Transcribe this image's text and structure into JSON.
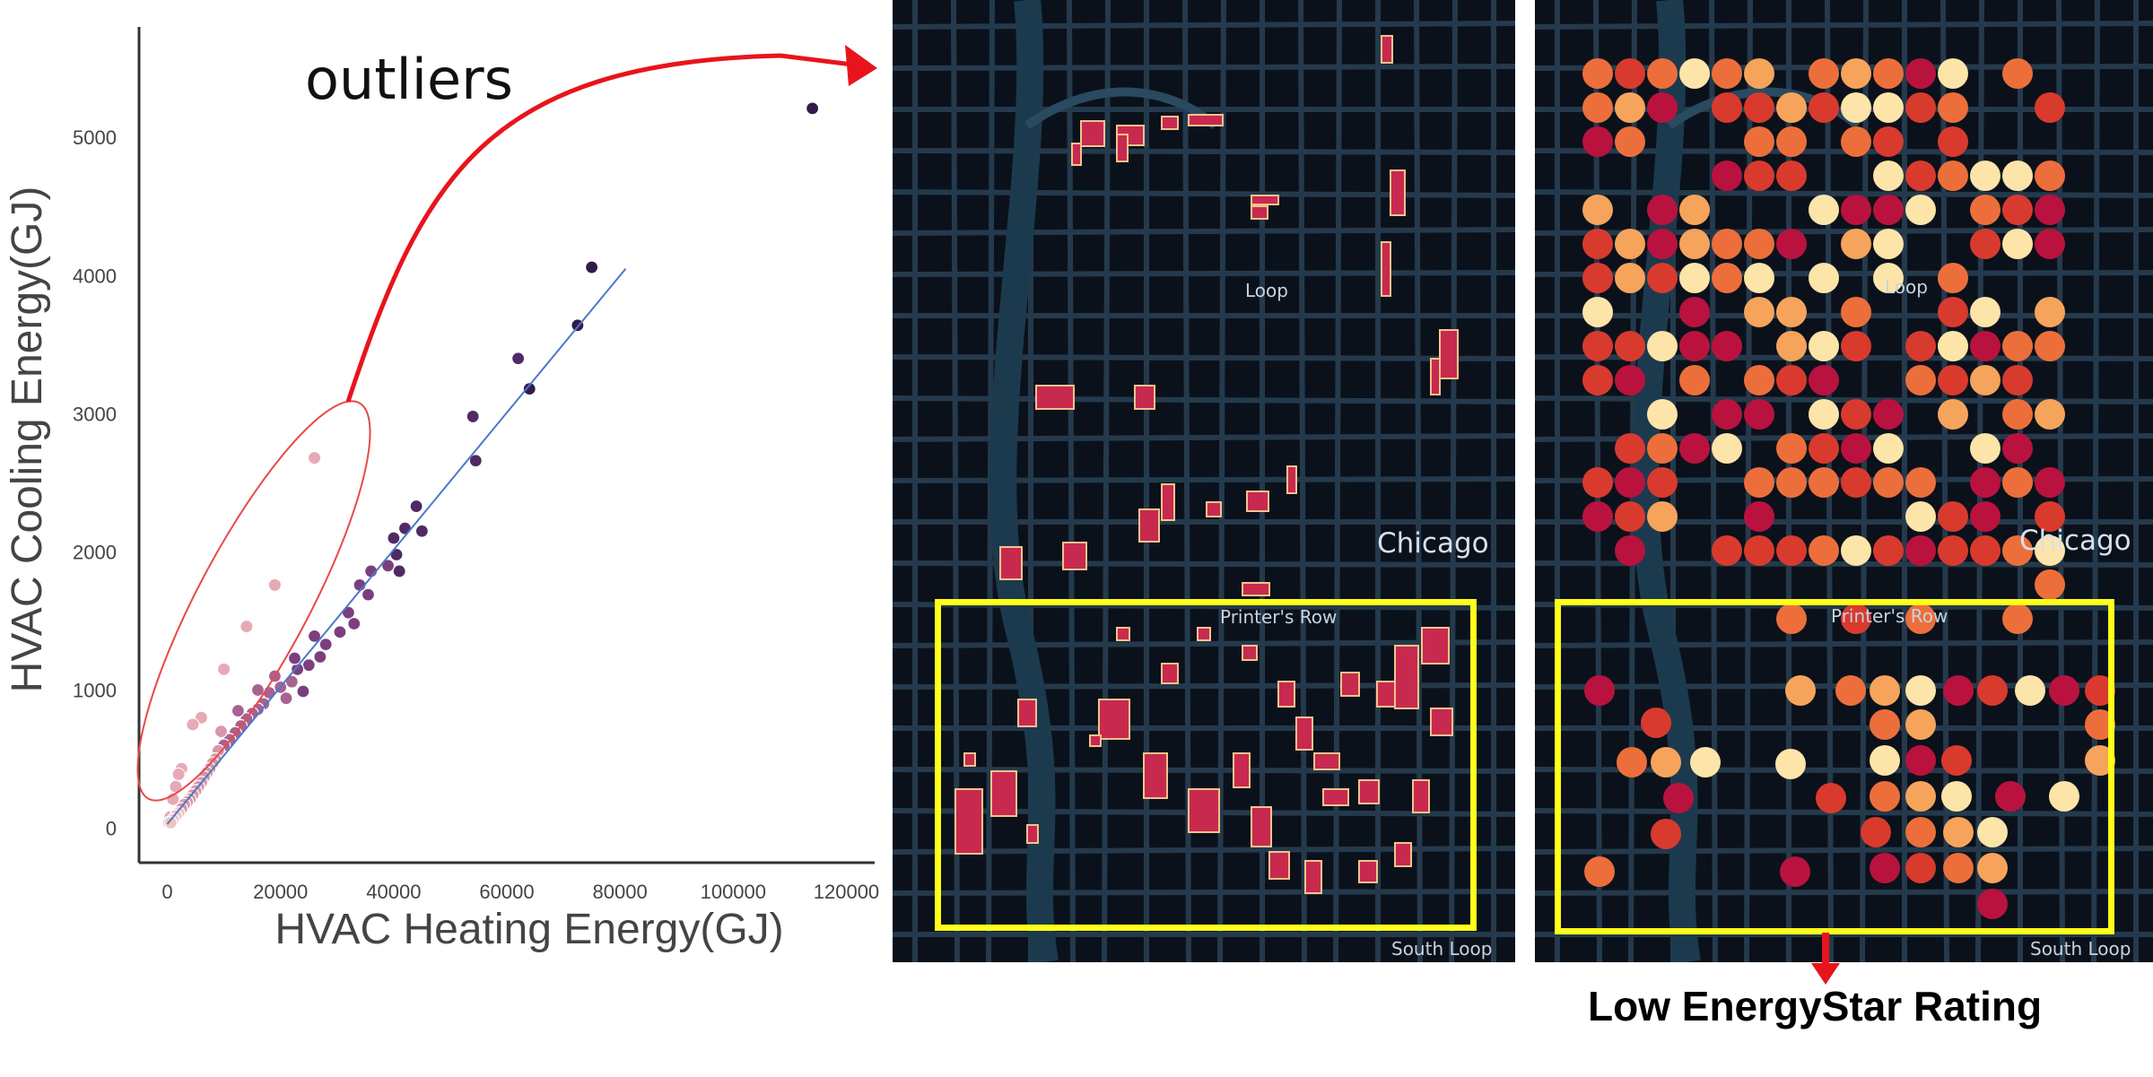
{
  "chart_data": {
    "type": "scatter",
    "xlabel": "HVAC Heating Energy(GJ)",
    "ylabel": "HVAC Cooling Energy(GJ)",
    "xlim": [
      -5000,
      125000
    ],
    "ylim": [
      -250,
      5800
    ],
    "xticks": [
      0,
      20000,
      40000,
      60000,
      80000,
      100000,
      120000
    ],
    "yticks": [
      0,
      1000,
      2000,
      3000,
      4000,
      5000
    ],
    "grid": false,
    "annotation": "outliers",
    "trendline": {
      "from": [
        0,
        30
      ],
      "to": [
        81000,
        4050
      ]
    },
    "outlier_points": [
      [
        26000,
        2680
      ],
      [
        19000,
        1760
      ],
      [
        14000,
        1460
      ],
      [
        10000,
        1150
      ],
      [
        6000,
        800
      ],
      [
        4500,
        750
      ],
      [
        2500,
        430
      ],
      [
        2000,
        390
      ],
      [
        1500,
        300
      ],
      [
        1000,
        210
      ],
      [
        500,
        80
      ],
      [
        300,
        40
      ]
    ],
    "main_points": [
      [
        114000,
        5210
      ],
      [
        75000,
        4060
      ],
      [
        72500,
        3640
      ],
      [
        62000,
        3400
      ],
      [
        64000,
        3180
      ],
      [
        54000,
        2980
      ],
      [
        54500,
        2660
      ],
      [
        44000,
        2330
      ],
      [
        42000,
        2170
      ],
      [
        45000,
        2150
      ],
      [
        40000,
        2100
      ],
      [
        40500,
        1980
      ],
      [
        39000,
        1900
      ],
      [
        41000,
        1860
      ],
      [
        36000,
        1860
      ],
      [
        34000,
        1760
      ],
      [
        35500,
        1690
      ],
      [
        32000,
        1560
      ],
      [
        33000,
        1480
      ],
      [
        30500,
        1420
      ],
      [
        28000,
        1330
      ],
      [
        26000,
        1390
      ],
      [
        27000,
        1240
      ],
      [
        25000,
        1180
      ],
      [
        23000,
        1150
      ],
      [
        22000,
        1060
      ],
      [
        20000,
        1020
      ],
      [
        21000,
        940
      ],
      [
        24000,
        990
      ],
      [
        18000,
        980
      ],
      [
        17000,
        900
      ],
      [
        16000,
        860
      ],
      [
        15000,
        830
      ],
      [
        14000,
        790
      ],
      [
        13000,
        740
      ],
      [
        12000,
        690
      ],
      [
        11000,
        640
      ],
      [
        10000,
        600
      ],
      [
        9000,
        560
      ],
      [
        8500,
        500
      ],
      [
        8000,
        470
      ],
      [
        7500,
        430
      ],
      [
        7000,
        400
      ],
      [
        6500,
        370
      ],
      [
        6000,
        330
      ],
      [
        5500,
        300
      ],
      [
        5000,
        270
      ],
      [
        4500,
        240
      ],
      [
        4000,
        210
      ],
      [
        3500,
        190
      ],
      [
        3000,
        170
      ],
      [
        2500,
        140
      ],
      [
        2000,
        110
      ],
      [
        1500,
        90
      ],
      [
        1000,
        60
      ],
      [
        600,
        40
      ],
      [
        16000,
        1000
      ],
      [
        19000,
        1100
      ],
      [
        22500,
        1230
      ],
      [
        12500,
        850
      ],
      [
        9500,
        700
      ]
    ]
  },
  "map1": {
    "labels": {
      "loop": "Loop",
      "chicago": "Chicago",
      "printers_row": "Printer's Row",
      "south_loop": "South Loop"
    }
  },
  "map2": {
    "labels": {
      "loop": "Loop",
      "chicago": "Chicago",
      "printers_row": "Printer's Row",
      "south_loop": "South Loop"
    },
    "palette": [
      "#b9123e",
      "#d93a2e",
      "#ec6f3b",
      "#f6a45b",
      "#fde4a8"
    ]
  },
  "caption": "Low EnergyStar Rating",
  "colors": {
    "arrow": "#e8141c",
    "highlight_box": "#ffff1a",
    "outlier_ellipse": "#e84a4a",
    "trendline": "#4c78c8",
    "building_fill": "#c8294f",
    "building_outline": "#f0c48c",
    "street": "#243a4c"
  }
}
